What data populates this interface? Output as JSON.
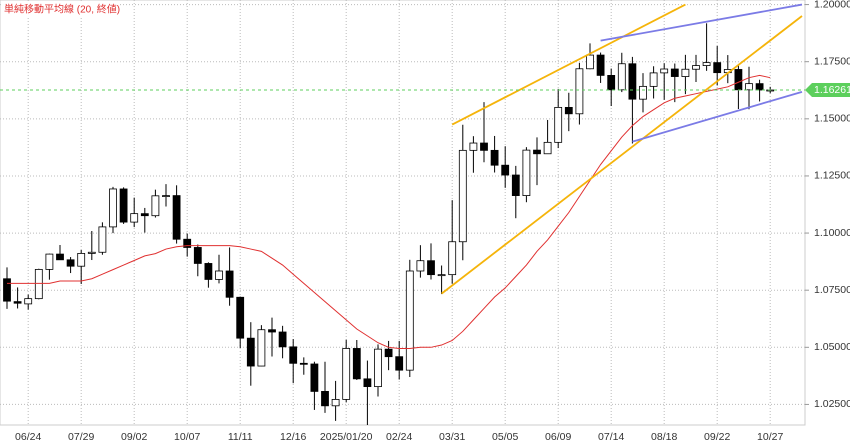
{
  "chart_data": {
    "type": "candlestick",
    "title": "単純移動平均線 (20, 終値)",
    "title_color": "#e03030",
    "categories": [
      null,
      null,
      "06/24",
      null,
      null,
      null,
      null,
      "07/29",
      null,
      null,
      null,
      null,
      "09/02",
      null,
      null,
      null,
      null,
      "10/07",
      null,
      null,
      null,
      null,
      "11/11",
      null,
      null,
      null,
      null,
      "12/16",
      null,
      null,
      null,
      null,
      "2025/01/20",
      null,
      null,
      null,
      null,
      "02/24",
      null,
      null,
      null,
      null,
      "03/31",
      null,
      null,
      null,
      null,
      "05/05",
      null,
      null,
      null,
      null,
      "06/09",
      null,
      null,
      null,
      null,
      "07/14",
      null,
      null,
      null,
      null,
      "08/18",
      null,
      null,
      null,
      null,
      "09/22",
      null,
      null,
      null,
      null,
      "10/27"
    ],
    "open": [
      1.08,
      1.07,
      1.069,
      1.0713,
      1.0841,
      1.0908,
      1.0883,
      1.0855,
      1.0911,
      1.0916,
      1.1027,
      1.1193,
      1.1048,
      1.1085,
      1.1076,
      1.1163,
      1.1164,
      1.0973,
      1.0937,
      1.0867,
      1.0797,
      1.0834,
      1.0719,
      1.054,
      1.0418,
      1.0577,
      1.0567,
      1.0502,
      1.043,
      1.0427,
      1.0307,
      1.0244,
      1.0272,
      1.0495,
      1.0362,
      1.0328,
      1.0492,
      1.0459,
      1.04,
      1.0834,
      1.0879,
      1.0818,
      1.0818,
      1.0962,
      1.1362,
      1.1394,
      1.1362,
      1.1297,
      1.1254,
      1.1164,
      1.1363,
      1.1347,
      1.1397,
      1.155,
      1.1522,
      1.1719,
      1.1779,
      1.169,
      1.1627,
      1.1741,
      1.1586,
      1.1642,
      1.1701,
      1.1718,
      1.1685,
      1.1717,
      1.1733,
      1.1746,
      1.1702,
      1.1716,
      1.1627,
      1.1654,
      1.1626
    ],
    "high": [
      1.085,
      1.0762,
      1.0731,
      1.0844,
      1.091,
      1.0948,
      1.0895,
      1.0926,
      1.1009,
      1.1047,
      1.1202,
      1.12,
      1.1155,
      1.111,
      1.119,
      1.1214,
      1.1209,
      1.0998,
      1.095,
      1.0872,
      1.0905,
      1.0937,
      1.0722,
      1.061,
      1.0597,
      1.063,
      1.0594,
      1.0536,
      1.0456,
      1.0437,
      1.0437,
      1.0353,
      1.0533,
      1.0532,
      1.0442,
      1.0513,
      1.0528,
      1.0528,
      1.0883,
      1.0947,
      1.0955,
      1.0858,
      1.1144,
      1.1474,
      1.1424,
      1.1573,
      1.1425,
      1.138,
      1.1294,
      1.1376,
      1.1419,
      1.1495,
      1.1631,
      1.1614,
      1.1745,
      1.183,
      1.179,
      1.172,
      1.1789,
      1.1771,
      1.17,
      1.173,
      1.1743,
      1.1742,
      1.178,
      1.178,
      1.1918,
      1.1819,
      1.1779,
      1.1734,
      1.1728,
      1.1671,
      1.164
    ],
    "low": [
      1.0668,
      1.067,
      1.0665,
      1.071,
      1.0796,
      1.0882,
      1.0825,
      1.0777,
      1.0882,
      1.0905,
      1.1,
      1.104,
      1.1026,
      1.1002,
      1.1068,
      1.1116,
      1.0954,
      1.0897,
      1.0811,
      1.0761,
      1.078,
      1.0682,
      1.0497,
      1.0332,
      1.0417,
      1.046,
      1.0452,
      1.0343,
      1.038,
      1.0226,
      1.0213,
      1.0178,
      1.026,
      1.0357,
      1.0141,
      1.0285,
      1.04,
      1.0359,
      1.037,
      1.0805,
      1.0797,
      1.0733,
      1.0778,
      1.0881,
      1.1264,
      1.131,
      1.1265,
      1.1198,
      1.1065,
      1.1135,
      1.121,
      1.1354,
      1.1372,
      1.1446,
      1.1475,
      1.1717,
      1.1657,
      1.1556,
      1.1617,
      1.1392,
      1.1528,
      1.1589,
      1.1583,
      1.1573,
      1.1608,
      1.1661,
      1.171,
      1.1646,
      1.1656,
      1.1543,
      1.1542,
      1.1576,
      1.1612
    ],
    "close": [
      1.0702,
      1.0693,
      1.0713,
      1.0841,
      1.0908,
      1.0883,
      1.0855,
      1.0911,
      1.0916,
      1.1027,
      1.1193,
      1.1048,
      1.1085,
      1.1076,
      1.1163,
      1.1164,
      1.0973,
      1.0937,
      1.0867,
      1.0797,
      1.0834,
      1.0719,
      1.054,
      1.0418,
      1.0577,
      1.0567,
      1.0502,
      1.043,
      1.0427,
      1.0307,
      1.0244,
      1.0272,
      1.0495,
      1.0362,
      1.0328,
      1.0492,
      1.0459,
      1.04,
      1.0834,
      1.0879,
      1.0818,
      1.0818,
      1.0962,
      1.1362,
      1.1394,
      1.1362,
      1.1297,
      1.1254,
      1.1164,
      1.1363,
      1.1347,
      1.1397,
      1.155,
      1.1522,
      1.1719,
      1.1779,
      1.169,
      1.1627,
      1.1741,
      1.1586,
      1.1642,
      1.1701,
      1.1718,
      1.1685,
      1.1717,
      1.1733,
      1.1746,
      1.1702,
      1.1716,
      1.1627,
      1.1654,
      1.1626,
      1.16261
    ],
    "up_color": "#ffffff",
    "down_color": "#000000",
    "moving_average": {
      "color": "#e03030",
      "values": [
        1.078,
        1.078,
        1.078,
        1.078,
        1.078,
        1.079,
        1.079,
        1.079,
        1.08,
        1.082,
        1.084,
        1.086,
        1.088,
        1.09,
        1.091,
        1.093,
        1.094,
        1.0945,
        1.0945,
        1.0945,
        1.0945,
        1.0945,
        1.094,
        1.093,
        1.092,
        1.089,
        1.086,
        1.082,
        1.078,
        1.074,
        1.07,
        1.066,
        1.062,
        1.058,
        1.055,
        1.052,
        1.05,
        1.0495,
        1.0495,
        1.05,
        1.05,
        1.051,
        1.053,
        1.057,
        1.062,
        1.067,
        1.072,
        1.076,
        1.081,
        1.086,
        1.092,
        1.097,
        1.103,
        1.109,
        1.116,
        1.123,
        1.13,
        1.136,
        1.142,
        1.147,
        1.151,
        1.154,
        1.157,
        1.159,
        1.16,
        1.161,
        1.162,
        1.163,
        1.164,
        1.166,
        1.168,
        1.169,
        1.168
      ]
    },
    "trendlines": [
      {
        "color": "#f5b40a",
        "x": [
          42,
          64
        ],
        "values": [
          1.1475,
          1.2
        ]
      },
      {
        "color": "#f5b40a",
        "x": [
          41,
          75
        ],
        "values": [
          1.0735,
          1.195
        ]
      },
      {
        "color": "#7b7be6",
        "x": [
          56,
          75
        ],
        "values": [
          1.1842,
          1.2
        ]
      },
      {
        "color": "#7b7be6",
        "x": [
          59,
          75
        ],
        "values": [
          1.14,
          1.1618
        ]
      }
    ],
    "last_price": 1.16261,
    "last_price_color": "#5ccf5c",
    "ylim": [
      1.016,
      1.202
    ],
    "yticks": [
      {
        "value": 1.025,
        "label": "1.02500"
      },
      {
        "value": 1.05,
        "label": "1.05000"
      },
      {
        "value": 1.075,
        "label": "1.07500"
      },
      {
        "value": 1.1,
        "label": "1.10000"
      },
      {
        "value": 1.125,
        "label": "1.12500"
      },
      {
        "value": 1.15,
        "label": "1.15000"
      },
      {
        "value": 1.175,
        "label": "1.17500"
      },
      {
        "value": 1.2,
        "label": "1.20000"
      }
    ],
    "grid": true
  }
}
